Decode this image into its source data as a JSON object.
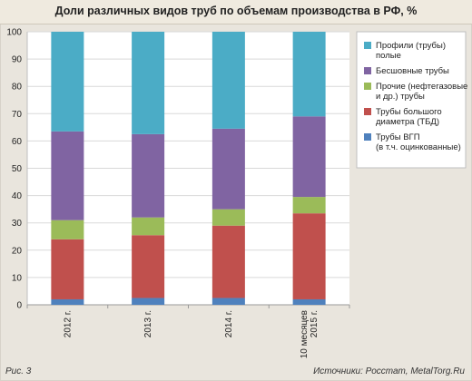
{
  "title": "Доли различных видов труб по объемам производства в РФ, %",
  "figure_label": "Рис. 3",
  "source": "Источники: Росстат, MetalTorg.Ru",
  "colors": {
    "background": "#e9e5dd",
    "plot_background": "#ffffff",
    "gridline": "#d9d9d9"
  },
  "chart_data": {
    "type": "bar",
    "stacked": true,
    "orientation": "vertical",
    "categories": [
      [
        "2012 г."
      ],
      [
        "2013 г."
      ],
      [
        "2014 г."
      ],
      [
        "10 месяцев",
        "2015 г."
      ]
    ],
    "ylim": [
      0,
      100
    ],
    "yticks": [
      0,
      10,
      20,
      30,
      40,
      50,
      60,
      70,
      80,
      90,
      100
    ],
    "grid": true,
    "legend_position": "right",
    "series": [
      {
        "name": "Трубы ВГП (в т.ч. оцинкованные)",
        "legend_lines": [
          "Трубы ВГП",
          "(в т.ч. оцинкованные)"
        ],
        "color": "#4f81bd",
        "values": [
          2.0,
          2.5,
          2.5,
          2.0
        ]
      },
      {
        "name": "Трубы большого диаметра (ТБД)",
        "legend_lines": [
          "Трубы большого",
          "диаметра (ТБД)"
        ],
        "color": "#c0504d",
        "values": [
          22.0,
          23.0,
          26.5,
          31.5
        ]
      },
      {
        "name": "Прочие (нефтегазовые и др.) трубы",
        "legend_lines": [
          "Прочие (нефтегазовые",
          "и др.) трубы"
        ],
        "color": "#9bbb59",
        "values": [
          7.0,
          6.5,
          6.0,
          6.0
        ]
      },
      {
        "name": "Бесшовные трубы",
        "legend_lines": [
          "Бесшовные трубы"
        ],
        "color": "#8064a2",
        "values": [
          32.5,
          30.5,
          29.5,
          29.5
        ]
      },
      {
        "name": "Профили (трубы) полые",
        "legend_lines": [
          "Профили (трубы)",
          "полые"
        ],
        "color": "#4bacc6",
        "values": [
          36.5,
          37.5,
          35.5,
          31.0
        ]
      }
    ]
  }
}
